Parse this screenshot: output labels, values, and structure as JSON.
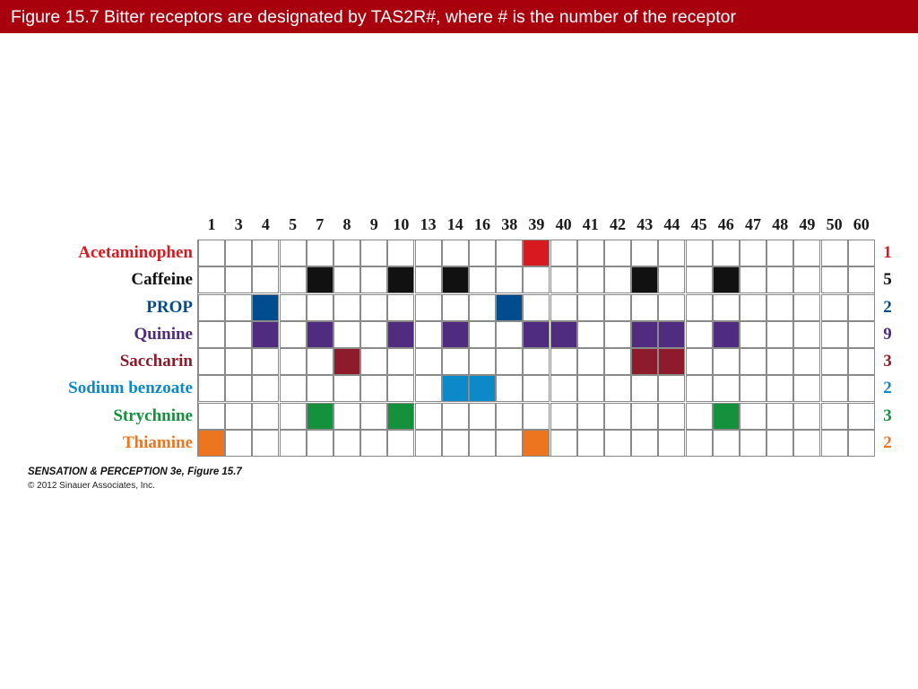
{
  "title": "Figure 15.7  Bitter receptors are designated by TAS2R#, where # is the number of the receptor",
  "columns": [
    "1",
    "3",
    "4",
    "5",
    "7",
    "8",
    "9",
    "10",
    "13",
    "14",
    "16",
    "38",
    "39",
    "40",
    "41",
    "42",
    "43",
    "44",
    "45",
    "46",
    "47",
    "48",
    "49",
    "50",
    "60"
  ],
  "rows": [
    {
      "label": "Acetaminophen",
      "count": "1",
      "color": "#d71920",
      "receptors": [
        "39"
      ]
    },
    {
      "label": "Caffeine",
      "count": "5",
      "color": "#111111",
      "receptors": [
        "7",
        "10",
        "14",
        "43",
        "46"
      ]
    },
    {
      "label": "PROP",
      "count": "2",
      "color": "#004c8c",
      "receptors": [
        "4",
        "38"
      ]
    },
    {
      "label": "Quinine",
      "count": "9",
      "color": "#4f2c80",
      "receptors": [
        "4",
        "7",
        "10",
        "14",
        "39",
        "40",
        "43",
        "44",
        "46"
      ]
    },
    {
      "label": "Saccharin",
      "count": "3",
      "color": "#8e1b2b",
      "receptors": [
        "8",
        "43",
        "44"
      ]
    },
    {
      "label": "Sodium benzoate",
      "count": "2",
      "color": "#0b89c9",
      "receptors": [
        "14",
        "16"
      ]
    },
    {
      "label": "Strychnine",
      "count": "3",
      "color": "#15903d",
      "receptors": [
        "7",
        "10",
        "46"
      ]
    },
    {
      "label": "Thiamine",
      "count": "2",
      "color": "#ee751f",
      "receptors": [
        "1",
        "39"
      ]
    }
  ],
  "caption": "SENSATION & PERCEPTION 3e, Figure 15.7",
  "copyright": "© 2012 Sinauer Associates, Inc.",
  "colors": {
    "title_bar": "#a8000c",
    "grid_line": "#8a8a8a"
  }
}
